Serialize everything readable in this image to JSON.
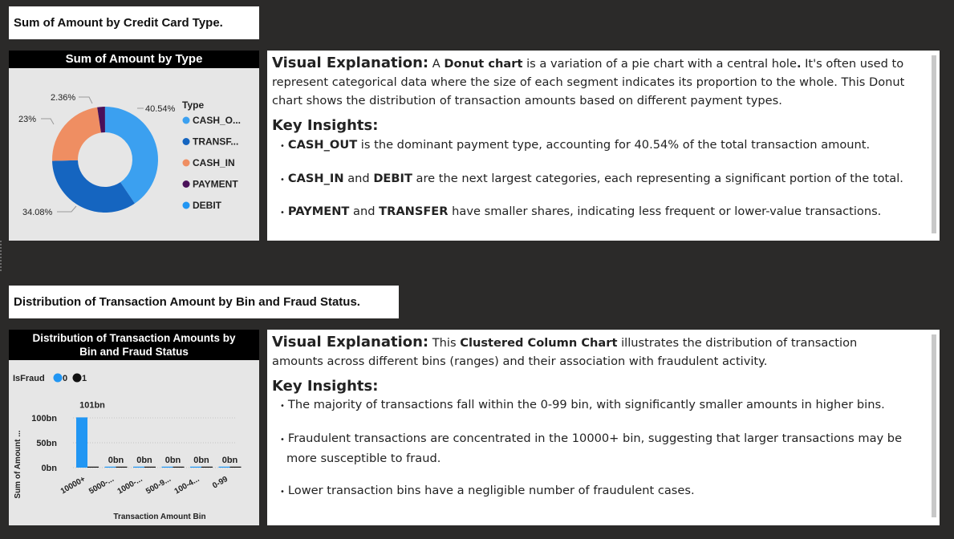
{
  "section1": {
    "title": "Sum of Amount by Credit Card Type.",
    "chart_header": "Sum of Amount by Type",
    "legend_title": "Type",
    "legend": [
      {
        "label": "CASH_O...",
        "color": "#3ba0f0"
      },
      {
        "label": "TRANSF...",
        "color": "#1565c0"
      },
      {
        "label": "CASH_IN",
        "color": "#ef8e62"
      },
      {
        "label": "PAYMENT",
        "color": "#4a1159"
      },
      {
        "label": "DEBIT",
        "color": "#2196f3"
      }
    ],
    "data_labels": {
      "cash_out": "40.54%",
      "transfer": "34.08%",
      "cash_in": "23%",
      "payment": "2.36%"
    },
    "text": {
      "vh": "Visual Explanation:",
      "v1": " A ",
      "v2": "Donut chart",
      "v3": " is a variation of a pie chart with a central hole",
      "v4": ".",
      "v5": " It's often used to represent categorical data where the size of each segment indicates its proportion to the whole. This Donut chart shows the distribution of transaction amounts based on different payment types.",
      "ki": "Key Insights:",
      "b1a": "CASH_OUT",
      "b1b": " is the dominant payment type, accounting for 40.54% of the total transaction amount.",
      "b2a": "CASH_IN",
      "b2b": " and ",
      "b2c": "DEBIT",
      "b2d": " are the next largest categories, each representing a significant portion of the total.",
      "b3a": "PAYMENT",
      "b3b": " and ",
      "b3c": "TRANSFER",
      "b3d": " have smaller shares, indicating less frequent or lower-value transactions."
    }
  },
  "section2": {
    "title": "Distribution of Transaction Amount by Bin and Fraud Status.",
    "chart_header": "Distribution of Transaction Amounts by Bin and Fraud Status",
    "legend_title": "IsFraud",
    "legend": [
      {
        "label": "0",
        "color": "#2196f3"
      },
      {
        "label": "1",
        "color": "#111111"
      }
    ],
    "ylabel": "Sum of Amount ...",
    "xlabel": "Transaction Amount Bin",
    "yticks": [
      "100bn",
      "50bn",
      "0bn"
    ],
    "text": {
      "vh": "Visual Explanation:",
      "v1": " This ",
      "v2": "Clustered Column Chart",
      "v3": " illustrates the distribution of transaction amounts across different bins (ranges) and their association with fraudulent activity.",
      "ki": "Key Insights:",
      "b1": "The majority of transactions fall within the 0-99 bin, with significantly smaller amounts in higher bins.",
      "b2": "Fraudulent transactions are concentrated in the 10000+ bin, suggesting that larger transactions may be more susceptible to fraud.",
      "b3": "Lower transaction bins have a negligible number of fraudulent cases."
    }
  },
  "chart_data": [
    {
      "type": "pie",
      "title": "Sum of Amount by Type",
      "legend_title": "Type",
      "categories": [
        "CASH_OUT",
        "TRANSFER",
        "CASH_IN",
        "PAYMENT",
        "DEBIT"
      ],
      "values": [
        40.54,
        34.08,
        23,
        2.36,
        0.02
      ],
      "colors": [
        "#3ba0f0",
        "#1565c0",
        "#ef8e62",
        "#4a1159",
        "#2196f3"
      ]
    },
    {
      "type": "bar",
      "title": "Distribution of Transaction Amounts by Bin and Fraud Status",
      "xlabel": "Transaction Amount Bin",
      "ylabel": "Sum of Amount ...",
      "categories": [
        "10000+",
        "5000-...",
        "1000-...",
        "500-9...",
        "100-4...",
        "0-99"
      ],
      "series": [
        {
          "name": "0",
          "values": [
            101,
            0,
            0,
            0,
            0,
            0
          ],
          "color": "#2196f3"
        },
        {
          "name": "1",
          "values": [
            0.2,
            0,
            0,
            0,
            0,
            0
          ],
          "color": "#111111"
        }
      ],
      "data_labels": [
        "101bn",
        "0bn",
        "0bn",
        "0bn",
        "0bn",
        "0bn"
      ],
      "ylim": [
        0,
        110
      ]
    }
  ]
}
